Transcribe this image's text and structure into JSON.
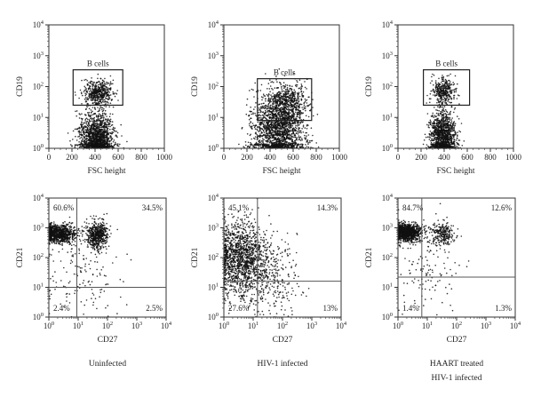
{
  "chart_data": [
    {
      "type": "scatter",
      "row": "top",
      "condition": "Uninfected",
      "xlabel": "FSC height",
      "ylabel": "CD19",
      "xscale": "linear",
      "yscale": "log",
      "xlim": [
        0,
        1000
      ],
      "ylim": [
        1,
        10000
      ],
      "x_ticks": [
        "0",
        "200",
        "400",
        "600",
        "800",
        "1000"
      ],
      "gate": {
        "label": "B cells",
        "x": [
          210,
          640
        ],
        "y": [
          25,
          350
        ]
      },
      "populations": [
        {
          "x_center": 410,
          "x_spread": 70,
          "y_log_center": 0.3,
          "y_log_spread": 0.4,
          "n": 1500
        },
        {
          "x_center": 430,
          "x_spread": 60,
          "y_log_center": 1.8,
          "y_log_spread": 0.22,
          "n": 500
        }
      ]
    },
    {
      "type": "scatter",
      "row": "top",
      "condition": "HIV-1 infected",
      "xlabel": "FSC height",
      "ylabel": "CD19",
      "xscale": "linear",
      "yscale": "log",
      "xlim": [
        0,
        1000
      ],
      "ylim": [
        1,
        10000
      ],
      "x_ticks": [
        "0",
        "200",
        "400",
        "600",
        "800",
        "1000"
      ],
      "gate": {
        "label": "B cells",
        "x": [
          290,
          760
        ],
        "y": [
          8,
          180
        ]
      },
      "populations": [
        {
          "x_center": 470,
          "x_spread": 110,
          "y_log_center": 0.6,
          "y_log_spread": 0.55,
          "n": 1800
        },
        {
          "x_center": 560,
          "x_spread": 80,
          "y_log_center": 1.5,
          "y_log_spread": 0.3,
          "n": 500
        }
      ]
    },
    {
      "type": "scatter",
      "row": "top",
      "condition": "HAART treated HIV-1 infected",
      "xlabel": "FSC height",
      "ylabel": "CD19",
      "xscale": "linear",
      "yscale": "log",
      "xlim": [
        0,
        1000
      ],
      "ylim": [
        1,
        10000
      ],
      "x_ticks": [
        "0",
        "200",
        "400",
        "600",
        "800",
        "1000"
      ],
      "gate": {
        "label": "B cells",
        "x": [
          220,
          620
        ],
        "y": [
          25,
          350
        ]
      },
      "populations": [
        {
          "x_center": 390,
          "x_spread": 55,
          "y_log_center": 0.4,
          "y_log_spread": 0.4,
          "n": 1200
        },
        {
          "x_center": 390,
          "x_spread": 50,
          "y_log_center": 1.85,
          "y_log_spread": 0.2,
          "n": 350
        }
      ]
    },
    {
      "type": "scatter",
      "row": "bottom",
      "condition": "Uninfected",
      "xlabel": "CD27",
      "ylabel": "CD21",
      "xscale": "log",
      "yscale": "log",
      "xlim": [
        1,
        10000
      ],
      "ylim": [
        1,
        10000
      ],
      "quadrant_threshold": {
        "x": 9,
        "y": 10
      },
      "quadrants": {
        "upper_left": "60.6%",
        "upper_right": "34.5%",
        "lower_left": "2.4%",
        "lower_right": "2.5%"
      },
      "populations": [
        {
          "x_log_center": 0.3,
          "x_log_spread": 0.3,
          "y_log_center": 2.8,
          "y_log_spread": 0.15,
          "n": 900
        },
        {
          "x_log_center": 1.65,
          "x_log_spread": 0.18,
          "y_log_center": 2.75,
          "y_log_spread": 0.22,
          "n": 550
        },
        {
          "x_log_center": 1.0,
          "x_log_spread": 0.7,
          "y_log_center": 1.6,
          "y_log_spread": 0.8,
          "n": 180
        }
      ]
    },
    {
      "type": "scatter",
      "row": "bottom",
      "condition": "HIV-1 infected",
      "xlabel": "CD27",
      "ylabel": "CD21",
      "xscale": "log",
      "yscale": "log",
      "xlim": [
        1,
        10000
      ],
      "ylim": [
        1,
        10000
      ],
      "quadrant_threshold": {
        "x": 14,
        "y": 16
      },
      "quadrants": {
        "upper_left": "45.1%",
        "upper_right": "14.3%",
        "lower_left": "27.6%",
        "lower_right": "13%"
      },
      "populations": [
        {
          "x_log_center": 0.6,
          "x_log_spread": 0.45,
          "y_log_center": 2.0,
          "y_log_spread": 0.6,
          "n": 1400
        },
        {
          "x_log_center": 1.5,
          "x_log_spread": 0.5,
          "y_log_center": 1.3,
          "y_log_spread": 0.6,
          "n": 300
        }
      ]
    },
    {
      "type": "scatter",
      "row": "bottom",
      "condition": "HAART treated HIV-1 infected",
      "xlabel": "CD27",
      "ylabel": "CD21",
      "xscale": "log",
      "yscale": "log",
      "xlim": [
        1,
        10000
      ],
      "ylim": [
        1,
        10000
      ],
      "quadrant_threshold": {
        "x": 6.5,
        "y": 22
      },
      "quadrants": {
        "upper_left": "84.7%",
        "upper_right": "12.6%",
        "lower_left": "1.4%",
        "lower_right": "1.3%"
      },
      "populations": [
        {
          "x_log_center": 0.3,
          "x_log_spread": 0.25,
          "y_log_center": 2.85,
          "y_log_spread": 0.14,
          "n": 1100
        },
        {
          "x_log_center": 1.5,
          "x_log_spread": 0.2,
          "y_log_center": 2.8,
          "y_log_spread": 0.2,
          "n": 250
        },
        {
          "x_log_center": 1.0,
          "x_log_spread": 0.6,
          "y_log_center": 1.7,
          "y_log_spread": 0.7,
          "n": 130
        }
      ]
    }
  ],
  "y_ticks": [
    {
      "base": "10",
      "exp": "0"
    },
    {
      "base": "10",
      "exp": "1"
    },
    {
      "base": "10",
      "exp": "2"
    },
    {
      "base": "10",
      "exp": "3"
    },
    {
      "base": "10",
      "exp": "4"
    }
  ],
  "conditions": [
    {
      "line1": "Uninfected",
      "line2": ""
    },
    {
      "line1": "HIV-1 infected",
      "line2": ""
    },
    {
      "line1": "HAART treated",
      "line2": "HIV-1 infected"
    }
  ]
}
